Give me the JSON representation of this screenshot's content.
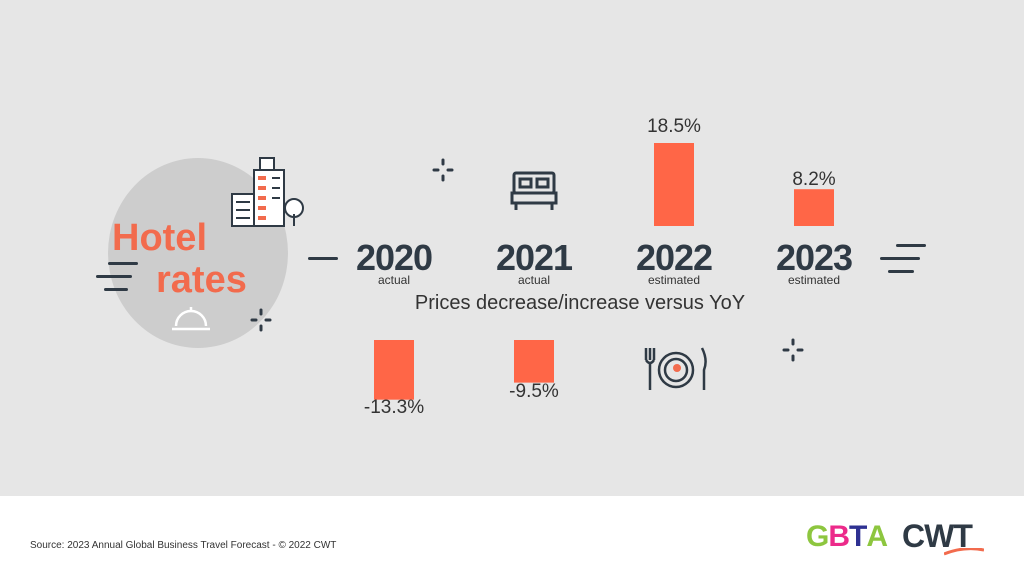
{
  "title": {
    "line1": "Hotel",
    "line2": "rates"
  },
  "subtitle": "Prices decrease/increase versus YoY",
  "source": "Source: 2023 Annual Global Business Travel Forecast - © 2022 CWT",
  "logos": {
    "gbta": [
      "G",
      "B",
      "T",
      "A"
    ],
    "cwt": "CWT"
  },
  "icons": [
    "hotel-building-icon",
    "bed-icon",
    "service-bell-icon",
    "plate-utensils-icon",
    "sparkle-icon"
  ],
  "colors": {
    "accent": "#f26b4d",
    "bar": "#ff6647",
    "background": "#e6e6e6",
    "text_dark": "#2f3a45",
    "circle": "#cdcdcd"
  },
  "chart_data": {
    "type": "bar",
    "title": "Hotel rates",
    "subtitle": "Prices decrease/increase versus YoY",
    "categories": [
      "2020",
      "2021",
      "2022",
      "2023"
    ],
    "sublabels": [
      "actual",
      "actual",
      "estimated",
      "estimated"
    ],
    "values": [
      -13.3,
      -9.5,
      18.5,
      8.2
    ],
    "value_labels": [
      "-13.3%",
      "-9.5%",
      "18.5%",
      "8.2%"
    ],
    "unit": "%",
    "ylim": [
      -13.3,
      18.5
    ]
  }
}
